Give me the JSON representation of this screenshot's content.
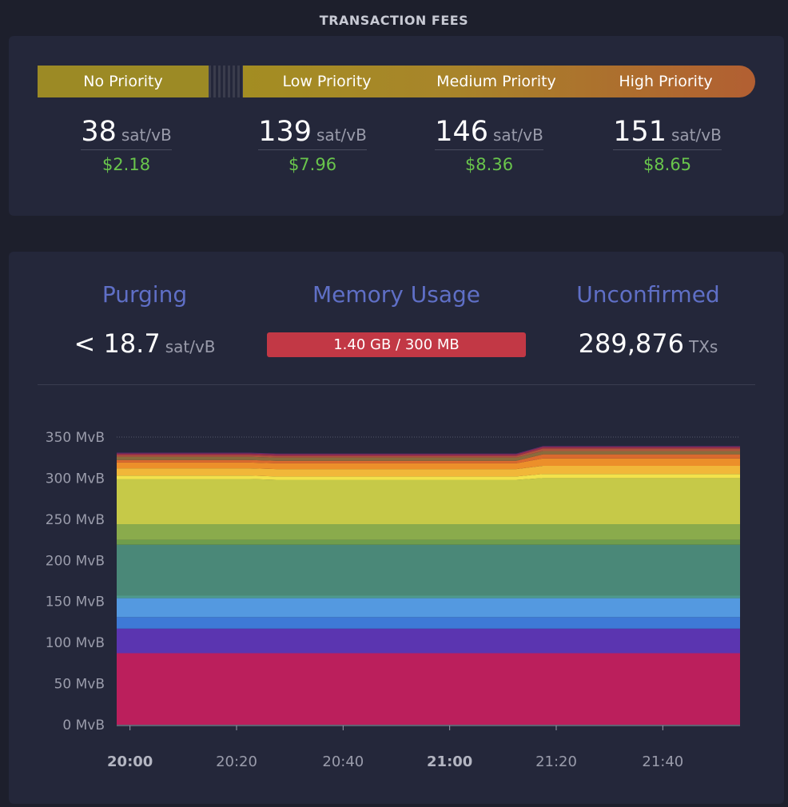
{
  "header": {
    "title": "TRANSACTION FEES"
  },
  "fees": {
    "priorities": [
      {
        "label": "No Priority",
        "rate": "38",
        "unit": "sat/vB",
        "usd": "$2.18"
      },
      {
        "label": "Low Priority",
        "rate": "139",
        "unit": "sat/vB",
        "usd": "$7.96"
      },
      {
        "label": "Medium Priority",
        "rate": "146",
        "unit": "sat/vB",
        "usd": "$8.36"
      },
      {
        "label": "High Priority",
        "rate": "151",
        "unit": "sat/vB",
        "usd": "$8.65"
      }
    ]
  },
  "mempool": {
    "purging": {
      "label": "Purging",
      "value": "< 18.7",
      "unit": "sat/vB"
    },
    "memory": {
      "label": "Memory Usage",
      "value": "1.40 GB / 300 MB",
      "fraction": 4.67
    },
    "unconfirmed": {
      "label": "Unconfirmed",
      "value": "289,876",
      "unit": "TXs"
    }
  },
  "chart_data": {
    "type": "area",
    "stacked": true,
    "y_ticks": [
      "0 MvB",
      "50 MvB",
      "100 MvB",
      "150 MvB",
      "200 MvB",
      "250 MvB",
      "300 MvB",
      "350 MvB"
    ],
    "ylim": [
      0,
      350
    ],
    "x_ticks": [
      {
        "label": "20:00",
        "bold": true
      },
      {
        "label": "20:20",
        "bold": false
      },
      {
        "label": "20:40",
        "bold": false
      },
      {
        "label": "21:00",
        "bold": true
      },
      {
        "label": "21:20",
        "bold": false
      },
      {
        "label": "21:40",
        "bold": false
      }
    ],
    "x": [
      0,
      5,
      10,
      15,
      20,
      25,
      30,
      35,
      40,
      45,
      50,
      55,
      60,
      65,
      70,
      75,
      80,
      85,
      90,
      95,
      100,
      105,
      110,
      117
    ],
    "series": [
      {
        "color": "#bb1f5c",
        "values": [
          87,
          87,
          87,
          87,
          87,
          87,
          87,
          87,
          87,
          87,
          87,
          87,
          87,
          87,
          87,
          87,
          87,
          87,
          87,
          87,
          87,
          87,
          87,
          87
        ]
      },
      {
        "color": "#5b35b0",
        "values": [
          30,
          30,
          30,
          30,
          30,
          30,
          30,
          30,
          30,
          30,
          30,
          30,
          30,
          30,
          30,
          30,
          30,
          30,
          30,
          30,
          30,
          30,
          30,
          30
        ]
      },
      {
        "color": "#3e7ad6",
        "values": [
          14,
          14,
          14,
          14,
          14,
          14,
          14,
          14,
          14,
          14,
          14,
          14,
          14,
          14,
          14,
          14,
          14,
          14,
          14,
          14,
          14,
          14,
          14,
          14
        ]
      },
      {
        "color": "#5499e0",
        "values": [
          23,
          23,
          23,
          23,
          23,
          23,
          23,
          23,
          23,
          23,
          23,
          23,
          23,
          23,
          23,
          23,
          23,
          23,
          23,
          23,
          23,
          23,
          23,
          23
        ]
      },
      {
        "color": "#4e9a8e",
        "values": [
          3,
          3,
          3,
          3,
          3,
          3,
          3,
          3,
          3,
          3,
          3,
          3,
          3,
          3,
          3,
          3,
          3,
          3,
          3,
          3,
          3,
          3,
          3,
          3
        ]
      },
      {
        "color": "#4a8878",
        "values": [
          62,
          62,
          62,
          62,
          62,
          62,
          62,
          62,
          62,
          62,
          62,
          62,
          62,
          62,
          62,
          62,
          62,
          62,
          62,
          62,
          62,
          62,
          62,
          62
        ]
      },
      {
        "color": "#6f9d4b",
        "values": [
          6,
          6,
          6,
          6,
          6,
          6,
          6,
          6,
          6,
          6,
          6,
          6,
          6,
          6,
          6,
          6,
          6,
          6,
          6,
          6,
          6,
          6,
          6,
          6
        ]
      },
      {
        "color": "#8aab4c",
        "values": [
          19,
          19,
          19,
          19,
          19,
          19,
          19,
          19,
          19,
          19,
          19,
          19,
          19,
          19,
          19,
          19,
          19,
          19,
          19,
          19,
          19,
          19,
          19,
          19
        ]
      },
      {
        "color": "#c6c948",
        "values": [
          55,
          55,
          55,
          55,
          55,
          55,
          54,
          54,
          54,
          54,
          54,
          54,
          54,
          54,
          54,
          54,
          56,
          56,
          56,
          56,
          56,
          56,
          56,
          56
        ]
      },
      {
        "color": "#f2e24b",
        "values": [
          4,
          4,
          4,
          4,
          4,
          4,
          4,
          4,
          4,
          4,
          4,
          4,
          4,
          4,
          4,
          4,
          5,
          5,
          5,
          5,
          5,
          5,
          5,
          5
        ]
      },
      {
        "color": "#f1b739",
        "values": [
          9,
          9,
          9,
          9,
          9,
          9,
          9,
          9,
          9,
          9,
          9,
          9,
          9,
          9,
          9,
          9,
          10,
          10,
          10,
          10,
          10,
          10,
          10,
          10
        ]
      },
      {
        "color": "#ec8f2a",
        "values": [
          7,
          7,
          7,
          7,
          7,
          7,
          7,
          7,
          7,
          7,
          7,
          7,
          7,
          7,
          7,
          7,
          9,
          9,
          9,
          9,
          9,
          9,
          9,
          9
        ]
      },
      {
        "color": "#db6a2e",
        "values": [
          3,
          3,
          3,
          3,
          3,
          3,
          3,
          3,
          3,
          3,
          3,
          3,
          3,
          3,
          3,
          3,
          5,
          5,
          5,
          5,
          5,
          5,
          5,
          5
        ]
      },
      {
        "color": "#8a6b3c",
        "values": [
          4,
          4,
          4,
          4,
          4,
          4,
          4,
          4,
          4,
          4,
          4,
          4,
          4,
          4,
          4,
          4,
          4,
          4,
          4,
          4,
          4,
          4,
          4,
          4
        ]
      },
      {
        "color": "#b0543c",
        "values": [
          2,
          2,
          2,
          2,
          2,
          2,
          2,
          2,
          2,
          2,
          2,
          2,
          2,
          2,
          2,
          2,
          3,
          3,
          3,
          3,
          3,
          3,
          3,
          3
        ]
      },
      {
        "color": "#9c2f4a",
        "values": [
          2,
          2,
          2,
          2,
          2,
          2,
          2,
          2,
          2,
          2,
          2,
          2,
          2,
          2,
          2,
          2,
          2,
          2,
          2,
          2,
          2,
          2,
          2,
          2
        ]
      },
      {
        "color": "#5e2a6a",
        "values": [
          1,
          1,
          1,
          1,
          1,
          1,
          1,
          1,
          1,
          1,
          1,
          1,
          1,
          1,
          1,
          1,
          1,
          1,
          1,
          1,
          1,
          1,
          1,
          1
        ]
      }
    ],
    "grid": false
  }
}
